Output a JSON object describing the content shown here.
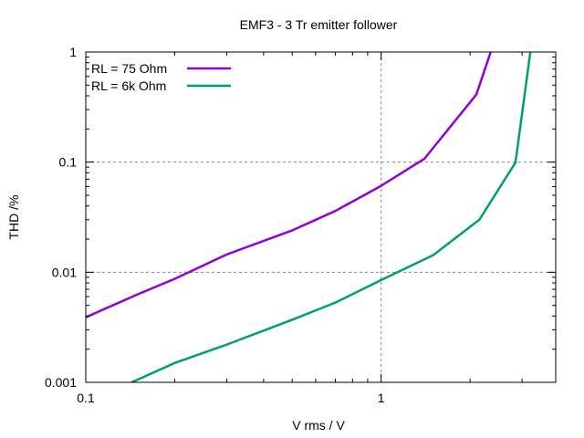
{
  "chart_data": {
    "type": "line",
    "title": "EMF3 - 3 Tr emitter follower",
    "xlabel": "V rms / V",
    "ylabel": "THD /%",
    "x_scale": "log",
    "y_scale": "log",
    "xlim": [
      0.1,
      3.9
    ],
    "ylim": [
      0.001,
      1
    ],
    "x_ticks": [
      {
        "value": 0.1,
        "label": "0.1"
      },
      {
        "value": 1,
        "label": "1"
      }
    ],
    "y_ticks": [
      {
        "value": 0.001,
        "label": "0.001"
      },
      {
        "value": 0.01,
        "label": "0.01"
      },
      {
        "value": 0.1,
        "label": "0.1"
      },
      {
        "value": 1,
        "label": "1"
      }
    ],
    "grid": "major, dashed",
    "legend_position": "top-left",
    "series": [
      {
        "name": "RL = 75 Ohm",
        "color": "#9400d3",
        "points": [
          [
            0.1,
            0.0039
          ],
          [
            0.15,
            0.0063
          ],
          [
            0.2,
            0.0087
          ],
          [
            0.3,
            0.0145
          ],
          [
            0.5,
            0.024
          ],
          [
            0.7,
            0.036
          ],
          [
            1.0,
            0.061
          ],
          [
            1.4,
            0.107
          ],
          [
            2.1,
            0.41
          ],
          [
            2.35,
            1.0
          ]
        ]
      },
      {
        "name": "RL = 6k Ohm",
        "color": "#009e73",
        "points": [
          [
            0.143,
            0.001
          ],
          [
            0.2,
            0.0015
          ],
          [
            0.3,
            0.0022
          ],
          [
            0.5,
            0.0037
          ],
          [
            0.7,
            0.0053
          ],
          [
            1.0,
            0.0085
          ],
          [
            1.5,
            0.0143
          ],
          [
            2.15,
            0.03
          ],
          [
            2.85,
            0.099
          ],
          [
            3.2,
            1.0
          ]
        ]
      }
    ]
  }
}
